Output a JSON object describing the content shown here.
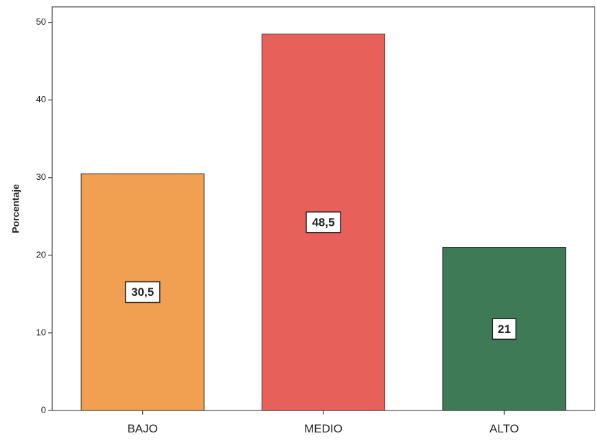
{
  "chart_data": {
    "type": "bar",
    "categories": [
      "BAJO",
      "MEDIO",
      "ALTO"
    ],
    "values": [
      30.5,
      48.5,
      21
    ],
    "data_labels": [
      "30,5",
      "48,5",
      "21"
    ],
    "colors": [
      "#f0a050",
      "#e8605a",
      "#3e7a56"
    ],
    "ylabel": "Porcentaje",
    "xlabel": "",
    "ylim": [
      0,
      52
    ],
    "yticks": [
      0,
      10,
      20,
      30,
      40,
      50
    ],
    "grid": false,
    "legend": "none"
  }
}
